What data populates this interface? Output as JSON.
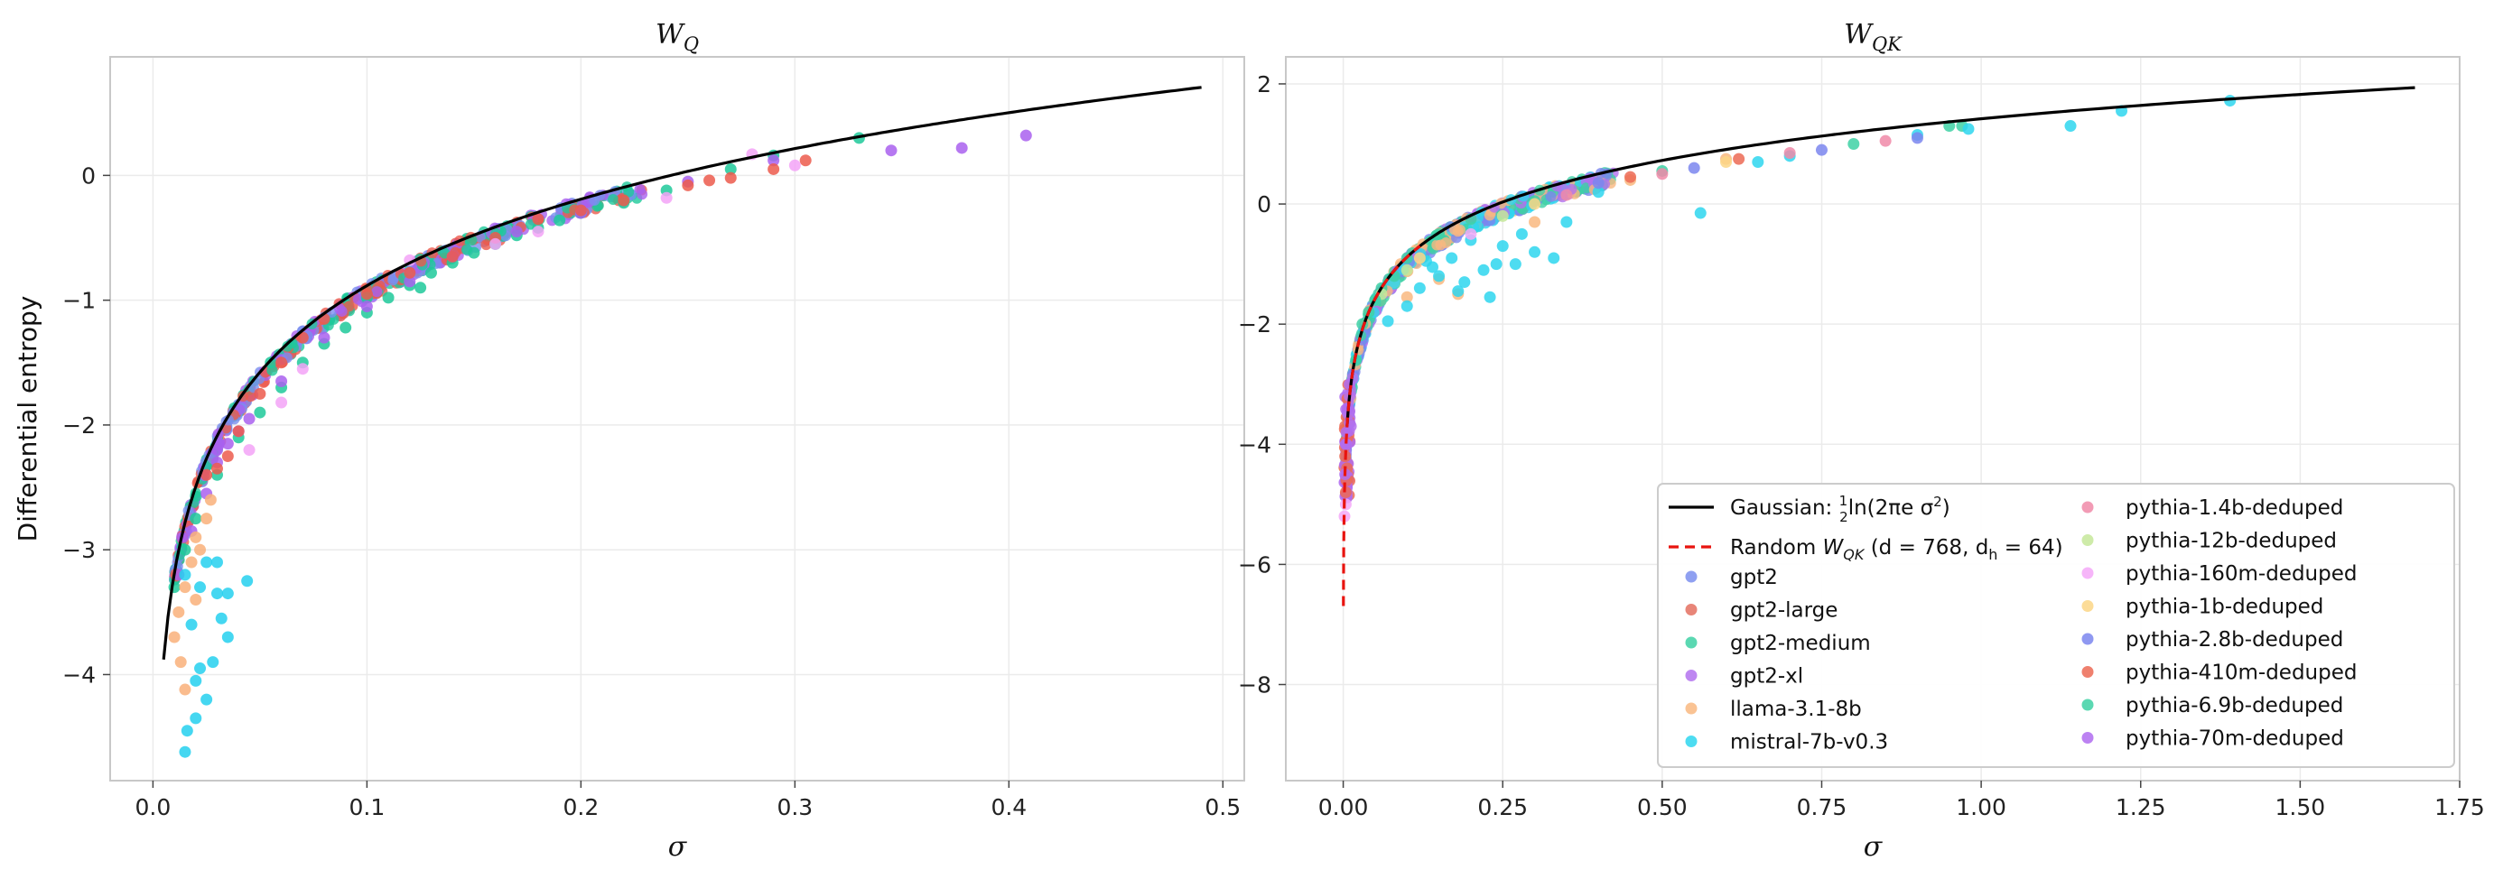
{
  "chart_data": [
    {
      "type": "scatter",
      "title": "W_Q",
      "title_main": "W",
      "title_sub": "Q",
      "xlabel": "σ",
      "ylabel": "Differential entropy",
      "xlim": [
        -0.02,
        0.51
      ],
      "ylim": [
        -4.85,
        0.95
      ],
      "xticks": [
        0.0,
        0.1,
        0.2,
        0.3,
        0.4,
        0.5
      ],
      "xtick_labels": [
        "0.0",
        "0.1",
        "0.2",
        "0.3",
        "0.4",
        "0.5"
      ],
      "yticks": [
        0,
        -1,
        -2,
        -3,
        -4
      ],
      "ytick_labels": [
        "0",
        "−1",
        "−2",
        "−3",
        "−4"
      ],
      "grid": true,
      "curve": {
        "name": "Gaussian",
        "sigma_range": [
          0.005,
          0.49
        ],
        "color": "#000000"
      },
      "series": [
        {
          "name": "gpt2-medium",
          "color": "#1ec99a",
          "points": [
            [
              0.01,
              -3.3
            ],
            [
              0.015,
              -3.0
            ],
            [
              0.02,
              -2.75
            ],
            [
              0.03,
              -2.4
            ],
            [
              0.04,
              -2.1
            ],
            [
              0.05,
              -1.9
            ],
            [
              0.06,
              -1.7
            ],
            [
              0.07,
              -1.5
            ],
            [
              0.08,
              -1.35
            ],
            [
              0.09,
              -1.22
            ],
            [
              0.1,
              -1.1
            ],
            [
              0.11,
              -0.98
            ],
            [
              0.12,
              -0.88
            ],
            [
              0.13,
              -0.78
            ],
            [
              0.14,
              -0.7
            ],
            [
              0.15,
              -0.62
            ],
            [
              0.16,
              -0.55
            ],
            [
              0.17,
              -0.48
            ],
            [
              0.18,
              -0.42
            ],
            [
              0.19,
              -0.36
            ],
            [
              0.2,
              -0.3
            ],
            [
              0.22,
              -0.22
            ],
            [
              0.24,
              -0.12
            ],
            [
              0.27,
              0.05
            ],
            [
              0.29,
              0.16
            ],
            [
              0.33,
              0.3
            ],
            [
              0.1,
              -0.98
            ],
            [
              0.125,
              -0.9
            ],
            [
              0.055,
              -1.5
            ]
          ]
        },
        {
          "name": "gpt2-xl",
          "color": "#a960ef",
          "points": [
            [
              0.012,
              -3.2
            ],
            [
              0.018,
              -2.85
            ],
            [
              0.025,
              -2.55
            ],
            [
              0.03,
              -2.3
            ],
            [
              0.035,
              -2.15
            ],
            [
              0.045,
              -1.95
            ],
            [
              0.06,
              -1.65
            ],
            [
              0.08,
              -1.3
            ],
            [
              0.1,
              -1.05
            ],
            [
              0.12,
              -0.85
            ],
            [
              0.14,
              -0.65
            ],
            [
              0.17,
              -0.45
            ],
            [
              0.2,
              -0.3
            ],
            [
              0.25,
              -0.05
            ],
            [
              0.29,
              0.12
            ],
            [
              0.345,
              0.2
            ],
            [
              0.378,
              0.22
            ],
            [
              0.408,
              0.32
            ],
            [
              0.03,
              -2.2
            ],
            [
              0.04,
              -2.05
            ]
          ]
        },
        {
          "name": "gpt2-large",
          "color": "#ec5a4c",
          "points": [
            [
              0.03,
              -2.35
            ],
            [
              0.04,
              -2.05
            ],
            [
              0.05,
              -1.75
            ],
            [
              0.06,
              -1.5
            ],
            [
              0.07,
              -1.3
            ],
            [
              0.08,
              -1.15
            ],
            [
              0.1,
              -0.95
            ],
            [
              0.12,
              -0.78
            ],
            [
              0.14,
              -0.65
            ],
            [
              0.16,
              -0.5
            ],
            [
              0.18,
              -0.35
            ],
            [
              0.2,
              -0.28
            ],
            [
              0.22,
              -0.2
            ],
            [
              0.25,
              -0.08
            ],
            [
              0.27,
              -0.02
            ],
            [
              0.29,
              0.05
            ],
            [
              0.305,
              0.12
            ],
            [
              0.26,
              -0.04
            ],
            [
              0.035,
              -2.25
            ],
            [
              0.025,
              -2.4
            ]
          ]
        },
        {
          "name": "llama-3.1-8b",
          "color": "#f9b07a",
          "points": [
            [
              0.01,
              -3.7
            ],
            [
              0.012,
              -3.5
            ],
            [
              0.015,
              -3.3
            ],
            [
              0.018,
              -3.1
            ],
            [
              0.02,
              -2.9
            ],
            [
              0.022,
              -3.0
            ],
            [
              0.025,
              -2.75
            ],
            [
              0.027,
              -2.6
            ],
            [
              0.015,
              -4.12
            ],
            [
              0.013,
              -3.9
            ],
            [
              0.02,
              -3.4
            ]
          ]
        },
        {
          "name": "pythia-160m-deduped",
          "color": "#f3a3f7",
          "points": [
            [
              0.045,
              -2.2
            ],
            [
              0.06,
              -1.82
            ],
            [
              0.07,
              -1.55
            ],
            [
              0.12,
              -0.68
            ],
            [
              0.16,
              -0.55
            ],
            [
              0.18,
              -0.45
            ],
            [
              0.24,
              -0.18
            ],
            [
              0.3,
              0.08
            ],
            [
              0.28,
              0.17
            ]
          ]
        },
        {
          "name": "mistral-7b-v0.3",
          "color": "#24d0ee",
          "points": [
            [
              0.015,
              -4.62
            ],
            [
              0.016,
              -4.45
            ],
            [
              0.02,
              -4.35
            ],
            [
              0.02,
              -4.05
            ],
            [
              0.022,
              -3.95
            ],
            [
              0.025,
              -4.2
            ],
            [
              0.028,
              -3.9
            ],
            [
              0.03,
              -3.35
            ],
            [
              0.032,
              -3.55
            ],
            [
              0.035,
              -3.7
            ],
            [
              0.018,
              -3.6
            ],
            [
              0.025,
              -3.1
            ],
            [
              0.044,
              -3.25
            ],
            [
              0.015,
              -3.2
            ],
            [
              0.022,
              -3.3
            ],
            [
              0.035,
              -3.35
            ],
            [
              0.03,
              -3.1
            ]
          ]
        }
      ]
    },
    {
      "type": "scatter",
      "title": "W_QK",
      "title_main": "W",
      "title_sub": "QK",
      "xlabel": "σ",
      "xlim": [
        -0.09,
        1.75
      ],
      "ylim": [
        -9.6,
        2.45
      ],
      "xticks": [
        0.0,
        0.25,
        0.5,
        0.75,
        1.0,
        1.25,
        1.5,
        1.75
      ],
      "xtick_labels": [
        "0.00",
        "0.25",
        "0.50",
        "0.75",
        "1.00",
        "1.25",
        "1.50",
        "1.75"
      ],
      "yticks": [
        2,
        0,
        -2,
        -4,
        -6,
        -8
      ],
      "ytick_labels": [
        "2",
        "0",
        "−2",
        "−4",
        "−6",
        "−8"
      ],
      "grid": true,
      "curve": {
        "name": "Gaussian",
        "sigma_range": [
          0.0,
          1.68
        ],
        "color": "#000000"
      },
      "random_curve": {
        "name": "Random",
        "color": "#e8140f",
        "dashed": true
      },
      "legend": {
        "placement": "lower-right",
        "columns": [
          [
            "Gaussian: ½ln(2πe σ²)",
            "Random W_QK (d = 768, d_h = 64)",
            "gpt2",
            "gpt2-large",
            "gpt2-medium",
            "gpt2-xl",
            "llama-3.1-8b",
            "mistral-7b-v0.3"
          ],
          [
            "pythia-1.4b-deduped",
            "pythia-12b-deduped",
            "pythia-160m-deduped",
            "pythia-1b-deduped",
            "pythia-2.8b-deduped",
            "pythia-410m-deduped",
            "pythia-6.9b-deduped",
            "pythia-70m-deduped"
          ]
        ]
      },
      "legend_text": {
        "gaussian_prefix": "Gaussian: ",
        "gaussian_half_num": "1",
        "gaussian_half_den": "2",
        "gaussian_suffix": "ln(2πe σ",
        "gaussian_sq": "2",
        "gaussian_close": ")",
        "random_prefix": "Random ",
        "random_W": "W",
        "random_W_sub": "QK",
        "random_mid": " (d = 768, d",
        "random_h_sub": "h",
        "random_end": " = 64)"
      },
      "series": [
        {
          "name": "gpt2",
          "color": "#7b8fef"
        },
        {
          "name": "gpt2-large",
          "color": "#e47060"
        },
        {
          "name": "gpt2-medium",
          "color": "#3ed1a5",
          "points": [
            [
              0.02,
              -2.6
            ],
            [
              0.04,
              -1.8
            ],
            [
              0.06,
              -1.4
            ],
            [
              0.1,
              -0.9
            ],
            [
              0.15,
              -0.5
            ],
            [
              0.2,
              -0.25
            ],
            [
              0.3,
              0.05
            ],
            [
              0.5,
              0.55
            ],
            [
              0.8,
              1.0
            ],
            [
              0.97,
              1.3
            ]
          ]
        },
        {
          "name": "gpt2-xl",
          "color": "#b372ee",
          "points": [
            [
              0.005,
              -4.0
            ],
            [
              0.008,
              -3.5
            ],
            [
              0.01,
              -3.2
            ],
            [
              0.012,
              -3.7
            ],
            [
              0.006,
              -4.4
            ],
            [
              0.015,
              -2.9
            ]
          ]
        },
        {
          "name": "llama-3.1-8b",
          "color": "#f9b880",
          "points": [
            [
              0.05,
              -1.6
            ],
            [
              0.08,
              -1.3
            ],
            [
              0.1,
              -1.55
            ],
            [
              0.15,
              -1.25
            ],
            [
              0.18,
              -1.5
            ],
            [
              0.3,
              -0.3
            ],
            [
              0.45,
              0.4
            ],
            [
              0.6,
              0.75
            ]
          ]
        },
        {
          "name": "mistral-7b-v0.3",
          "color": "#2ed6ef",
          "points": [
            [
              0.05,
              -1.6
            ],
            [
              0.07,
              -1.95
            ],
            [
              0.08,
              -1.3
            ],
            [
              0.1,
              -1.7
            ],
            [
              0.12,
              -1.4
            ],
            [
              0.14,
              -1.05
            ],
            [
              0.15,
              -1.2
            ],
            [
              0.17,
              -0.9
            ],
            [
              0.18,
              -1.45
            ],
            [
              0.2,
              -0.6
            ],
            [
              0.22,
              -1.1
            ],
            [
              0.23,
              -1.55
            ],
            [
              0.25,
              -0.7
            ],
            [
              0.27,
              -1.0
            ],
            [
              0.3,
              -0.8
            ],
            [
              0.33,
              -0.9
            ],
            [
              0.28,
              -0.5
            ],
            [
              0.35,
              -0.3
            ],
            [
              0.56,
              -0.15
            ],
            [
              0.4,
              0.2
            ],
            [
              0.65,
              0.7
            ],
            [
              0.7,
              0.8
            ],
            [
              0.9,
              1.15
            ],
            [
              0.98,
              1.25
            ],
            [
              1.14,
              1.3
            ],
            [
              1.22,
              1.55
            ],
            [
              1.39,
              1.72
            ],
            [
              0.13,
              -0.95
            ],
            [
              0.19,
              -1.3
            ],
            [
              0.24,
              -1.0
            ]
          ]
        },
        {
          "name": "pythia-1.4b-deduped",
          "color": "#f08aa8",
          "points": [
            [
              0.35,
              0.15
            ],
            [
              0.5,
              0.5
            ],
            [
              0.7,
              0.85
            ],
            [
              0.85,
              1.05
            ]
          ]
        },
        {
          "name": "pythia-12b-deduped",
          "color": "#c6e89a",
          "points": [
            [
              0.06,
              -1.5
            ],
            [
              0.1,
              -1.1
            ],
            [
              0.25,
              -0.2
            ]
          ]
        },
        {
          "name": "pythia-160m-deduped",
          "color": "#f4a8f8",
          "points": [
            [
              0.002,
              -5.2
            ],
            [
              0.004,
              -5.0
            ],
            [
              0.2,
              -0.5
            ]
          ]
        },
        {
          "name": "pythia-1b-deduped",
          "color": "#fbd686",
          "points": [
            [
              0.12,
              -0.9
            ],
            [
              0.3,
              0.0
            ],
            [
              0.6,
              0.7
            ]
          ]
        },
        {
          "name": "pythia-2.8b-deduped",
          "color": "#7b86ef",
          "points": [
            [
              0.4,
              0.35
            ],
            [
              0.55,
              0.6
            ],
            [
              0.75,
              0.9
            ],
            [
              0.9,
              1.1
            ]
          ]
        },
        {
          "name": "pythia-410m-deduped",
          "color": "#ec6a55",
          "points": [
            [
              0.004,
              -4.8
            ],
            [
              0.005,
              -4.6
            ],
            [
              0.006,
              -4.4
            ],
            [
              0.003,
              -4.2
            ],
            [
              0.45,
              0.45
            ],
            [
              0.62,
              0.75
            ]
          ]
        },
        {
          "name": "pythia-6.9b-deduped",
          "color": "#3ed1a5",
          "points": [
            [
              0.03,
              -2.0
            ],
            [
              0.05,
              -1.6
            ],
            [
              0.08,
              -1.2
            ],
            [
              0.95,
              1.3
            ]
          ]
        },
        {
          "name": "pythia-70m-deduped",
          "color": "#b06cf0",
          "points": [
            [
              0.003,
              -4.5
            ],
            [
              0.004,
              -4.0
            ],
            [
              0.005,
              -3.8
            ],
            [
              0.007,
              -3.4
            ],
            [
              0.01,
              -3.0
            ]
          ]
        }
      ]
    }
  ]
}
